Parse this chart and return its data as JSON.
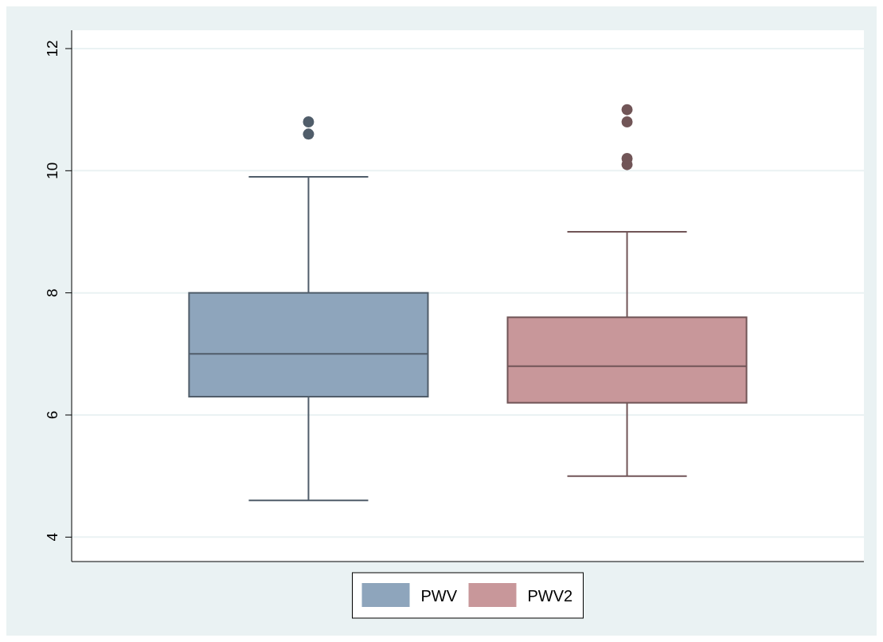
{
  "chart_data": {
    "type": "box",
    "categories": [
      null
    ],
    "ylim": [
      3.6,
      12.3
    ],
    "yticks": [
      4,
      6,
      8,
      10,
      12
    ],
    "grid": "y",
    "legend": "bottom",
    "series": [
      {
        "name": "PWV",
        "color": "#8ea5bc",
        "boxes": [
          {
            "low": 4.6,
            "q1": 6.3,
            "median": 7.0,
            "q3": 8.0,
            "high": 9.9,
            "outliers": [
              10.6,
              10.8
            ]
          }
        ]
      },
      {
        "name": "PWV2",
        "color": "#c8979a",
        "boxes": [
          {
            "low": 5.0,
            "q1": 6.2,
            "median": 6.8,
            "q3": 7.6,
            "high": 9.0,
            "outliers": [
              10.1,
              10.2,
              10.8,
              11.0
            ]
          }
        ]
      }
    ]
  }
}
